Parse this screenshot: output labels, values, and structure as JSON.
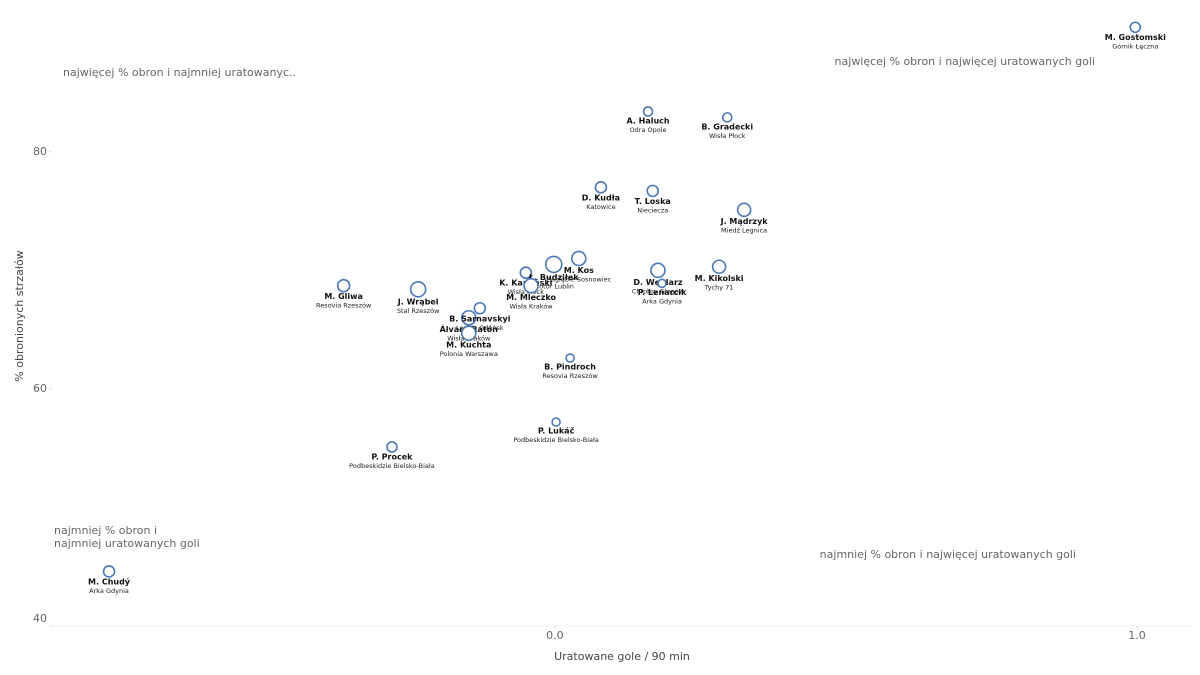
{
  "chart_data": {
    "type": "scatter",
    "x_label": "Uratowane gole / 90 min",
    "y_label": "% obronionych strzałów",
    "xlim": [
      -0.864,
      1.091
    ],
    "ylim": [
      40,
      92.8
    ],
    "xticks": [
      {
        "value": 0,
        "label": "0.0"
      },
      {
        "value": 1,
        "label": "1.0"
      }
    ],
    "yticks": [
      40,
      60,
      80
    ],
    "color": "#4a78b5",
    "points": [
      {
        "label": "M. Gostomski",
        "team": "Górnik Łęczna",
        "x": 0.997,
        "y": 90.5,
        "size": 5
      },
      {
        "label": "A. Haluch",
        "team": "Odra Opole",
        "x": 0.16,
        "y": 83.4,
        "size": 4.5
      },
      {
        "label": "B. Gradecki",
        "team": "Wisła Płock",
        "x": 0.296,
        "y": 82.9,
        "size": 4.5
      },
      {
        "label": "D. Kudła",
        "team": "Katowice",
        "x": 0.079,
        "y": 77.0,
        "size": 5.5
      },
      {
        "label": "T. Loska",
        "team": "Nieciecza",
        "x": 0.168,
        "y": 76.7,
        "size": 5.5
      },
      {
        "label": "J. Mądrzyk",
        "team": "Miedź Legnica",
        "x": 0.325,
        "y": 75.1,
        "size": 6.5
      },
      {
        "label": "K. Kamiński",
        "team": "Wisła Płock",
        "x": -0.05,
        "y": 69.8,
        "size": 5.5
      },
      {
        "label": "Ł. Budziłek",
        "team": "Motor Lublin",
        "x": -0.002,
        "y": 70.5,
        "size": 8
      },
      {
        "label": "M. Kos",
        "team": "Zagłębie Sosnowiec",
        "x": 0.041,
        "y": 71.0,
        "size": 7
      },
      {
        "label": "D. Węglarz",
        "team": "Chrobry Głogów",
        "x": 0.177,
        "y": 70.0,
        "size": 7
      },
      {
        "label": "P. Lenarcik",
        "team": "Arka Gdynia",
        "x": 0.184,
        "y": 68.9,
        "size": 4
      },
      {
        "label": "M. Kikolski",
        "team": "Tychy 71",
        "x": 0.282,
        "y": 70.3,
        "size": 6.5
      },
      {
        "label": "M. Gliwa",
        "team": "Resovia Rzeszów",
        "x": -0.363,
        "y": 68.7,
        "size": 6
      },
      {
        "label": "J. Wrąbel",
        "team": "Stal Rzeszów",
        "x": -0.235,
        "y": 68.4,
        "size": 7.5
      },
      {
        "label": "Álvaro Ratón",
        "team": "Wisła Kraków",
        "x": -0.148,
        "y": 66.0,
        "size": 7
      },
      {
        "label": "B. Sarnavskyi",
        "team": "Lechia Gdańsk",
        "x": -0.129,
        "y": 66.8,
        "size": 5.5
      },
      {
        "label": "M. Mleczko",
        "team": "Wisła Kraków",
        "x": -0.041,
        "y": 68.7,
        "size": 7
      },
      {
        "label": "M. Kuchta",
        "team": "Polonia Warszawa",
        "x": -0.148,
        "y": 64.7,
        "size": 7
      },
      {
        "label": "B. Pindroch",
        "team": "Resovia Rzeszów",
        "x": 0.026,
        "y": 62.6,
        "size": 4
      },
      {
        "label": "P. Lukáč",
        "team": "Podbeskidzie Bielsko-Biała",
        "x": 0.002,
        "y": 57.2,
        "size": 4
      },
      {
        "label": "P. Procek",
        "team": "Podbeskidzie Bielsko-Biała",
        "x": -0.28,
        "y": 55.1,
        "size": 5
      },
      {
        "label": "M. Chudý",
        "team": "Arka Gdynia",
        "x": -0.766,
        "y": 44.6,
        "size": 5.5
      }
    ],
    "annotations": [
      {
        "lines": [
          "najwięcej % obron i najmniej uratowanyc.."
        ],
        "corner": "top-left"
      },
      {
        "lines": [
          "najwięcej % obron i najwięcej uratowanych goli"
        ],
        "corner": "top-right"
      },
      {
        "lines": [
          "najmniej % obron i",
          "najmniej uratowanych goli"
        ],
        "corner": "bottom-left"
      },
      {
        "lines": [
          "najmniej % obron i najwięcej uratowanych goli"
        ],
        "corner": "bottom-right"
      }
    ]
  }
}
